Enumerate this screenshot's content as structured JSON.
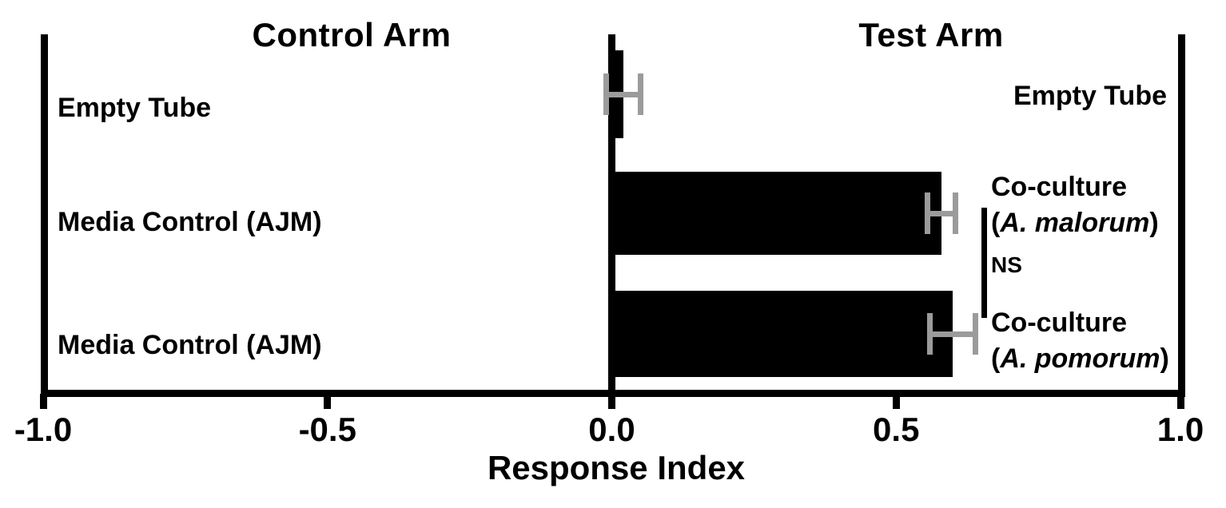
{
  "chart_data": {
    "type": "bar",
    "orientation": "horizontal",
    "panel_titles": {
      "left": "Control Arm",
      "right": "Test Arm"
    },
    "xlabel": "Response Index",
    "xlim": [
      -1.0,
      1.0
    ],
    "grid": false,
    "legend": null,
    "x_ticks": [
      {
        "value": -1.0,
        "label": "-1.0"
      },
      {
        "value": -0.5,
        "label": "-0.5"
      },
      {
        "value": 0.0,
        "label": "0.0"
      },
      {
        "value": 0.5,
        "label": "0.5"
      },
      {
        "value": 1.0,
        "label": "1.0"
      }
    ],
    "bars": [
      {
        "control_label": "Empty Tube",
        "test_label": "Empty Tube",
        "value": 0.02,
        "error": 0.03
      },
      {
        "control_label": "Media Control (AJM)",
        "test_label": "Co-culture (A. malorum)",
        "test_label_line1": "Co-culture",
        "test_label_species": "A. malorum",
        "value": 0.58,
        "error": 0.025
      },
      {
        "control_label": "Media Control (AJM)",
        "test_label": "Co-culture (A. pomorum)",
        "test_label_line1": "Co-culture",
        "test_label_species": "A. pomorum",
        "value": 0.6,
        "error": 0.04
      }
    ],
    "species_paren": {
      "open": "(",
      "close": ")"
    },
    "significance": {
      "label": "NS",
      "compares_bars": [
        1,
        2
      ]
    },
    "colors": {
      "bar": "#000000",
      "error_bar": "#9b9b9b",
      "axis": "#000000",
      "background": "#ffffff"
    }
  }
}
